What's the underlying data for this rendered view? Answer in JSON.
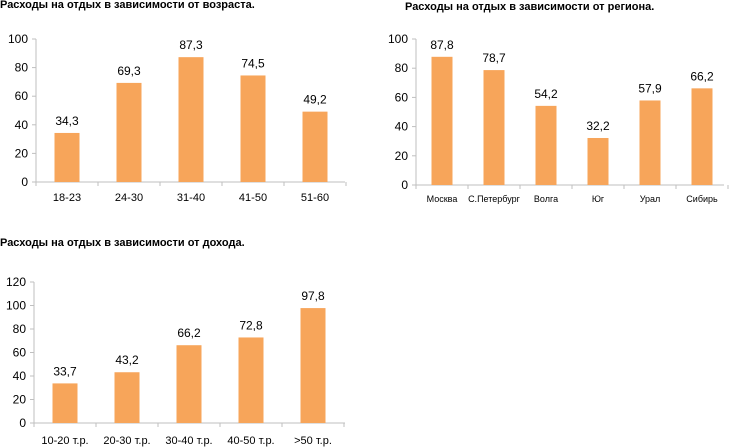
{
  "chart_data": [
    {
      "type": "bar",
      "title": "Расходы на отдых в зависимости от возраста.",
      "categories": [
        "18-23",
        "24-30",
        "31-40",
        "41-50",
        "51-60"
      ],
      "values": [
        34.3,
        69.3,
        87.3,
        74.5,
        49.2
      ],
      "data_labels": [
        "34,3",
        "69,3",
        "87,3",
        "74,5",
        "49,2"
      ],
      "y_ticks": [
        0,
        20,
        40,
        60,
        80,
        100
      ],
      "ylim": [
        0,
        100
      ],
      "xlabel": "",
      "ylabel": "",
      "grid": false,
      "color": "#F7A55A"
    },
    {
      "type": "bar",
      "title": "Расходы на отдых в зависимости от региона.",
      "categories": [
        "Москва",
        "С.Петербург",
        "Волга",
        "Юг",
        "Урал",
        "Сибирь"
      ],
      "values": [
        87.8,
        78.7,
        54.2,
        32.2,
        57.9,
        66.2
      ],
      "data_labels": [
        "87,8",
        "78,7",
        "54,2",
        "32,2",
        "57,9",
        "66,2"
      ],
      "y_ticks": [
        0,
        20,
        40,
        60,
        80,
        100
      ],
      "ylim": [
        0,
        100
      ],
      "xlabel": "",
      "ylabel": "",
      "grid": false,
      "color": "#F7A55A"
    },
    {
      "type": "bar",
      "title": "Расходы на отдых в зависимости от дохода.",
      "categories": [
        "10-20 т.р.",
        "20-30 т.р.",
        "30-40 т.р.",
        "40-50 т.р.",
        ">50 т.р."
      ],
      "values": [
        33.7,
        43.2,
        66.2,
        72.8,
        97.8
      ],
      "data_labels": [
        "33,7",
        "43,2",
        "66,2",
        "72,8",
        "97,8"
      ],
      "y_ticks": [
        0,
        20,
        40,
        60,
        80,
        100,
        120
      ],
      "ylim": [
        0,
        120
      ],
      "xlabel": "",
      "ylabel": "",
      "grid": false,
      "color": "#F7A55A"
    }
  ]
}
